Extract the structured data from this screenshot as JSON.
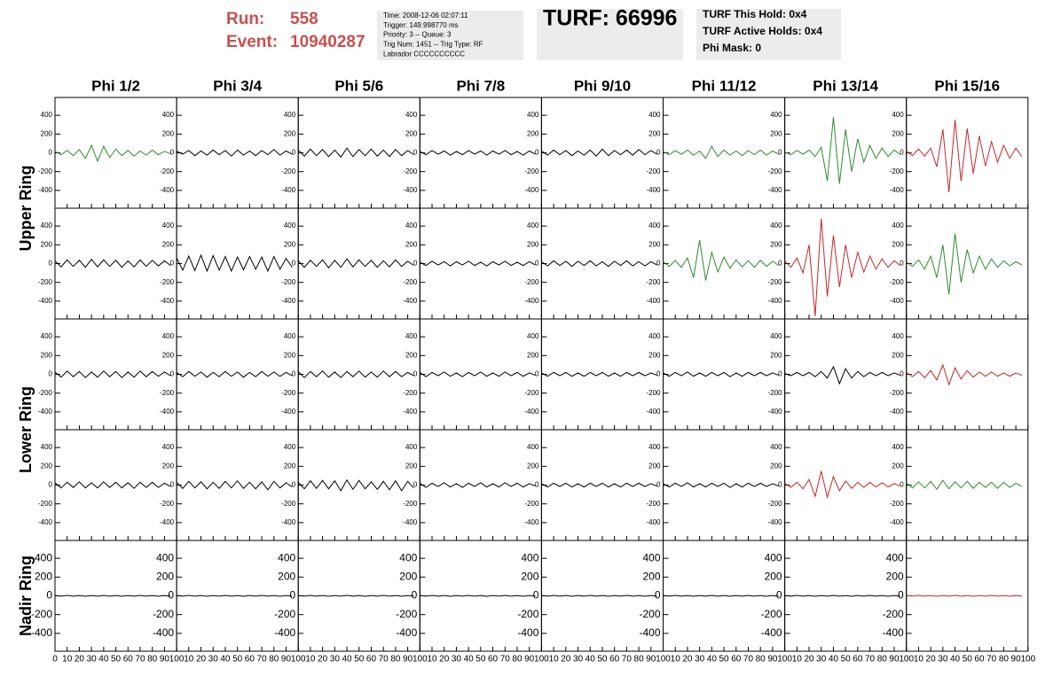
{
  "header": {
    "run_label": "Run:",
    "run": "558",
    "event_label": "Event:",
    "event": "10940287",
    "info": [
      "Time: 2008-12-06 02:07:11",
      "Trigger: 149.998770 ms",
      "Priority: 3 -- Queue: 3",
      "Trig Num: 1451 -- Trig Type: RF",
      "Labrador CCCCCCCCCC"
    ],
    "turf": "TURF: 66996",
    "holds": [
      "TURF This Hold: 0x4",
      "TURF Active Holds: 0x4",
      "Phi Mask: 0"
    ]
  },
  "chart_data": {
    "type": "line",
    "columns": [
      "Phi 1/2",
      "Phi 3/4",
      "Phi 5/6",
      "Phi 7/8",
      "Phi 9/10",
      "Phi 11/12",
      "Phi 13/14",
      "Phi 15/16"
    ],
    "row_labels": [
      "Upper Ring",
      "Lower Ring",
      "Nadir Ring"
    ],
    "x": [
      0,
      5,
      10,
      15,
      20,
      25,
      30,
      35,
      40,
      45,
      50,
      55,
      60,
      65,
      70,
      75,
      80,
      85,
      90,
      95
    ],
    "xlim": [
      0,
      100
    ],
    "xticks": [
      0,
      10,
      20,
      30,
      40,
      50,
      60,
      70,
      80,
      90,
      100
    ],
    "ylim": [
      -590,
      590
    ],
    "yticks": [
      400,
      200,
      0,
      -200,
      -400
    ],
    "panels": [
      [
        {
          "color": "#2e8b2e",
          "values": [
            15,
            -20,
            25,
            -30,
            35,
            -60,
            80,
            -90,
            70,
            -50,
            40,
            -30,
            25,
            -35,
            20,
            -25,
            30,
            -20,
            15,
            -10
          ]
        },
        {
          "color": "#000000",
          "values": [
            20,
            -15,
            25,
            -30,
            20,
            -25,
            30,
            -20,
            25,
            -35,
            30,
            -25,
            20,
            -30,
            25,
            -20,
            35,
            -25,
            20,
            -15
          ]
        },
        {
          "color": "#000000",
          "values": [
            30,
            -35,
            40,
            -30,
            35,
            -40,
            30,
            -45,
            50,
            -40,
            35,
            -30,
            40,
            -35,
            30,
            -40,
            35,
            -30,
            25,
            -20
          ]
        },
        {
          "color": "#000000",
          "values": [
            15,
            -20,
            25,
            -15,
            20,
            -25,
            15,
            -20,
            25,
            -15,
            20,
            -25,
            20,
            -15,
            25,
            -20,
            15,
            -25,
            20,
            -15
          ]
        },
        {
          "color": "#000000",
          "values": [
            20,
            -25,
            30,
            -20,
            25,
            -30,
            20,
            -25,
            30,
            -35,
            40,
            -30,
            25,
            -20,
            30,
            -25,
            35,
            -20,
            25,
            -15
          ]
        },
        {
          "color": "#2e8b2e",
          "values": [
            15,
            -20,
            25,
            -15,
            30,
            -25,
            20,
            -60,
            70,
            -40,
            30,
            -25,
            20,
            -30,
            25,
            -20,
            30,
            -25,
            20,
            -15
          ]
        },
        {
          "color": "#2e8b2e",
          "values": [
            10,
            -20,
            25,
            -15,
            30,
            -40,
            60,
            -300,
            380,
            -330,
            250,
            -200,
            150,
            -100,
            80,
            -60,
            50,
            -40,
            30,
            -20
          ]
        },
        {
          "color": "#c0282d",
          "values": [
            20,
            -30,
            40,
            -35,
            50,
            -150,
            250,
            -420,
            350,
            -300,
            260,
            -220,
            180,
            -140,
            120,
            -100,
            80,
            -60,
            50,
            -40
          ]
        }
      ],
      [
        {
          "color": "#000000",
          "values": [
            30,
            -35,
            40,
            -30,
            35,
            -40,
            45,
            -35,
            40,
            -30,
            35,
            -40,
            30,
            -35,
            40,
            -30,
            35,
            -25,
            30,
            -20
          ]
        },
        {
          "color": "#000000",
          "values": [
            60,
            -70,
            80,
            -75,
            90,
            -80,
            85,
            -70,
            75,
            -80,
            70,
            -65,
            75,
            -60,
            70,
            -80,
            75,
            -60,
            55,
            -40
          ]
        },
        {
          "color": "#000000",
          "values": [
            30,
            -40,
            35,
            -30,
            40,
            -45,
            35,
            -40,
            50,
            -35,
            40,
            -30,
            35,
            -40,
            30,
            -35,
            40,
            -30,
            25,
            -20
          ]
        },
        {
          "color": "#000000",
          "values": [
            15,
            -20,
            25,
            -15,
            20,
            -25,
            20,
            -15,
            25,
            -20,
            15,
            -25,
            20,
            -15,
            25,
            -20,
            15,
            -20,
            20,
            -15
          ]
        },
        {
          "color": "#000000",
          "values": [
            20,
            -25,
            30,
            -20,
            25,
            -30,
            25,
            -20,
            30,
            -25,
            20,
            -30,
            25,
            -20,
            30,
            -25,
            20,
            -25,
            20,
            -15
          ]
        },
        {
          "color": "#2e8b2e",
          "values": [
            20,
            -30,
            35,
            -40,
            60,
            -150,
            250,
            -180,
            120,
            -90,
            70,
            -50,
            40,
            -35,
            30,
            -40,
            35,
            -30,
            25,
            -20
          ]
        },
        {
          "color": "#c0282d",
          "values": [
            30,
            -40,
            60,
            -100,
            200,
            -560,
            480,
            -350,
            300,
            -250,
            200,
            -150,
            120,
            -90,
            80,
            -60,
            50,
            -40,
            30,
            -20
          ]
        },
        {
          "color": "#2e8b2e",
          "values": [
            20,
            -30,
            40,
            -60,
            80,
            -150,
            200,
            -330,
            320,
            -200,
            150,
            -100,
            80,
            -60,
            50,
            -40,
            30,
            -25,
            20,
            -15
          ]
        }
      ],
      [
        {
          "color": "#000000",
          "values": [
            25,
            -30,
            35,
            -25,
            30,
            -35,
            25,
            -30,
            35,
            -25,
            30,
            -35,
            25,
            -30,
            35,
            -25,
            30,
            -20,
            25,
            -15
          ]
        },
        {
          "color": "#000000",
          "values": [
            20,
            -25,
            30,
            -20,
            25,
            -30,
            20,
            -25,
            30,
            -20,
            25,
            -30,
            20,
            -25,
            30,
            -20,
            25,
            -20,
            20,
            -15
          ]
        },
        {
          "color": "#000000",
          "values": [
            30,
            -35,
            30,
            -25,
            35,
            -30,
            25,
            -35,
            30,
            -25,
            35,
            -30,
            25,
            -30,
            35,
            -25,
            30,
            -25,
            20,
            -15
          ]
        },
        {
          "color": "#000000",
          "values": [
            20,
            -25,
            20,
            -15,
            25,
            -20,
            15,
            -25,
            20,
            -15,
            25,
            -20,
            15,
            -20,
            25,
            -15,
            20,
            -20,
            15,
            -10
          ]
        },
        {
          "color": "#000000",
          "values": [
            15,
            -20,
            20,
            -15,
            20,
            -20,
            15,
            -20,
            20,
            -15,
            20,
            -20,
            15,
            -20,
            20,
            -15,
            20,
            -15,
            15,
            -10
          ]
        },
        {
          "color": "#000000",
          "values": [
            15,
            -20,
            20,
            -15,
            25,
            -20,
            15,
            -20,
            20,
            -15,
            20,
            -25,
            15,
            -20,
            20,
            -15,
            20,
            -15,
            15,
            -10
          ]
        },
        {
          "color": "#000000",
          "values": [
            10,
            -15,
            20,
            -15,
            20,
            -25,
            30,
            -40,
            80,
            -100,
            60,
            -40,
            30,
            -25,
            20,
            -15,
            20,
            -15,
            15,
            -10
          ]
        },
        {
          "color": "#c0282d",
          "values": [
            20,
            -25,
            30,
            -35,
            40,
            -60,
            100,
            -110,
            70,
            -50,
            40,
            -30,
            25,
            -20,
            25,
            -20,
            15,
            -20,
            15,
            -10
          ]
        }
      ],
      [
        {
          "color": "#000000",
          "values": [
            25,
            -30,
            30,
            -25,
            35,
            -30,
            25,
            -30,
            35,
            -25,
            30,
            -30,
            25,
            -35,
            30,
            -25,
            30,
            -25,
            20,
            -15
          ]
        },
        {
          "color": "#000000",
          "values": [
            30,
            -35,
            40,
            -30,
            35,
            -40,
            30,
            -35,
            40,
            -30,
            45,
            -35,
            30,
            -40,
            35,
            -50,
            40,
            -30,
            25,
            -20
          ]
        },
        {
          "color": "#000000",
          "values": [
            30,
            -40,
            45,
            -35,
            50,
            -40,
            45,
            -60,
            55,
            -45,
            50,
            -40,
            35,
            -45,
            40,
            -50,
            45,
            -60,
            40,
            -30
          ]
        },
        {
          "color": "#000000",
          "values": [
            20,
            -25,
            20,
            -15,
            25,
            -20,
            15,
            -25,
            20,
            -15,
            25,
            -20,
            15,
            -20,
            25,
            -15,
            20,
            -20,
            15,
            -10
          ]
        },
        {
          "color": "#000000",
          "values": [
            15,
            -20,
            20,
            -15,
            20,
            -20,
            15,
            -20,
            20,
            -15,
            20,
            -20,
            15,
            -20,
            20,
            -15,
            20,
            -15,
            15,
            -10
          ]
        },
        {
          "color": "#000000",
          "values": [
            15,
            -20,
            20,
            -15,
            25,
            -20,
            15,
            -20,
            20,
            -15,
            20,
            -25,
            15,
            -20,
            20,
            -15,
            20,
            -15,
            15,
            -10
          ]
        },
        {
          "color": "#c0282d",
          "values": [
            20,
            -25,
            30,
            -40,
            60,
            -120,
            150,
            -130,
            90,
            -60,
            45,
            -35,
            30,
            -25,
            30,
            -20,
            25,
            -20,
            15,
            -10
          ]
        },
        {
          "color": "#2e8b2e",
          "values": [
            25,
            -30,
            35,
            -30,
            40,
            -45,
            50,
            -40,
            35,
            -30,
            40,
            -35,
            30,
            -25,
            30,
            -35,
            30,
            -25,
            20,
            -15
          ]
        }
      ],
      [
        {
          "color": "#000000",
          "values": [
            3,
            -4,
            5,
            -3,
            4,
            -5,
            3,
            -4,
            5,
            -3,
            4,
            -5,
            3,
            -4,
            5,
            -3,
            4,
            -5,
            3,
            -4
          ]
        },
        {
          "color": "#000000",
          "values": [
            3,
            -4,
            5,
            -3,
            4,
            -5,
            3,
            -4,
            5,
            -3,
            4,
            -5,
            3,
            -4,
            5,
            -3,
            4,
            -5,
            3,
            -4
          ]
        },
        {
          "color": "#000000",
          "values": [
            3,
            -4,
            5,
            -3,
            4,
            -5,
            3,
            -4,
            5,
            -3,
            4,
            -5,
            3,
            -4,
            5,
            -3,
            4,
            -5,
            3,
            -4
          ]
        },
        {
          "color": "#000000",
          "values": [
            3,
            -4,
            5,
            -3,
            4,
            -5,
            3,
            -4,
            5,
            -3,
            4,
            -5,
            3,
            -4,
            5,
            -3,
            4,
            -5,
            3,
            -4
          ]
        },
        {
          "color": "#000000",
          "values": [
            3,
            -4,
            5,
            -3,
            4,
            -5,
            3,
            -4,
            5,
            -3,
            4,
            -5,
            3,
            -4,
            5,
            -3,
            4,
            -5,
            3,
            -4
          ]
        },
        {
          "color": "#000000",
          "values": [
            3,
            -4,
            5,
            -3,
            4,
            -5,
            3,
            -4,
            5,
            -3,
            4,
            -5,
            3,
            -4,
            5,
            -3,
            4,
            -5,
            3,
            -4
          ]
        },
        {
          "color": "#000000",
          "values": [
            3,
            -4,
            5,
            -3,
            4,
            -5,
            3,
            -4,
            5,
            -3,
            4,
            -5,
            3,
            -4,
            5,
            -3,
            4,
            -5,
            3,
            -4
          ]
        },
        {
          "color": "#c0282d",
          "values": [
            3,
            -4,
            5,
            -3,
            4,
            -5,
            3,
            -4,
            5,
            -3,
            4,
            -5,
            3,
            -4,
            5,
            -3,
            4,
            -5,
            3,
            -4
          ]
        }
      ]
    ]
  }
}
